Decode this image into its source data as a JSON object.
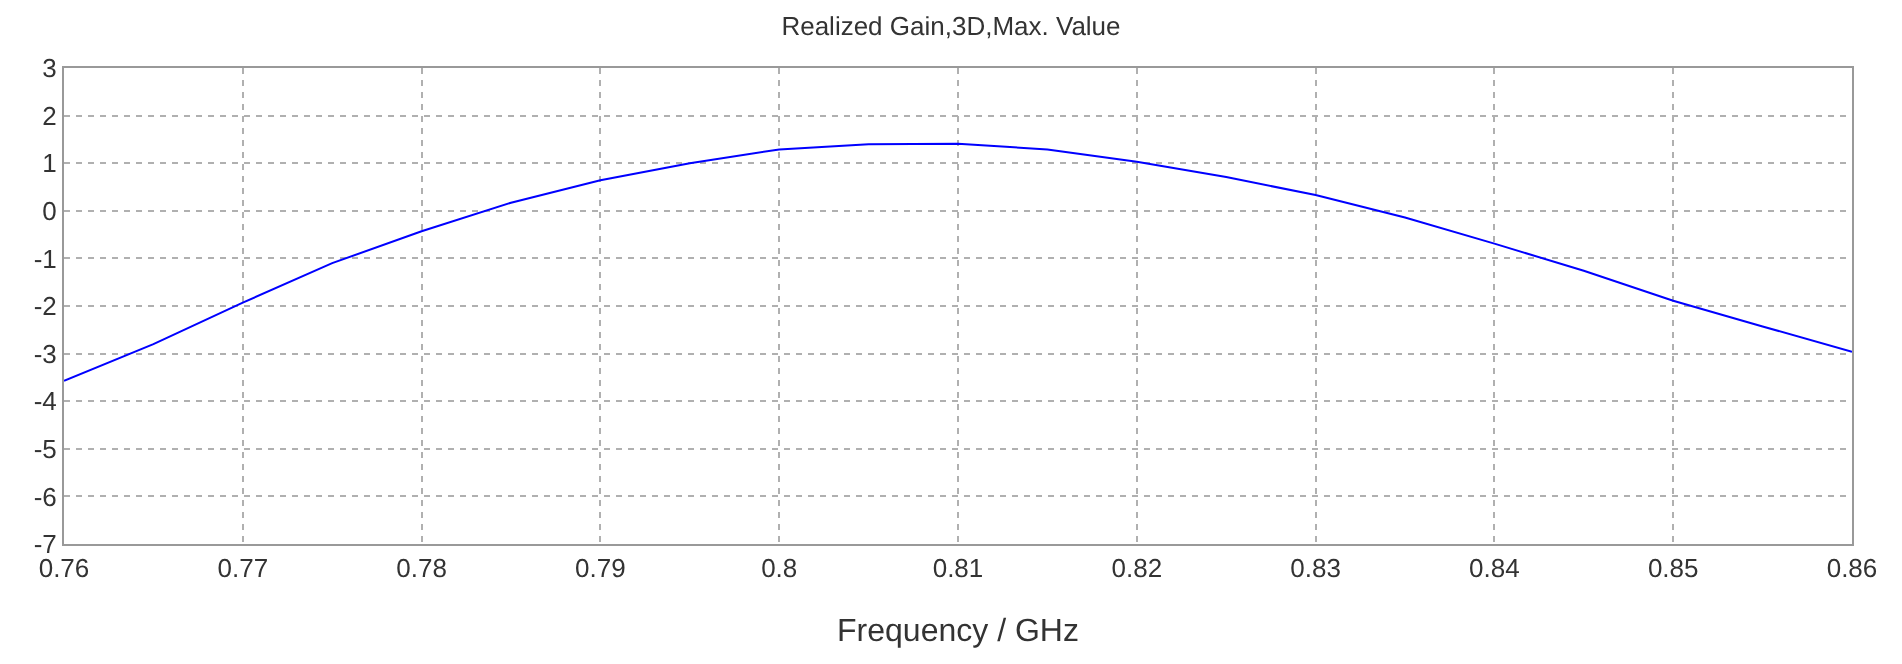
{
  "chart_data": {
    "type": "line",
    "title": "Realized Gain,3D,Max. Value",
    "xlabel": "Frequency / GHz",
    "x": [
      0.76,
      0.765,
      0.77,
      0.775,
      0.78,
      0.785,
      0.79,
      0.795,
      0.8,
      0.805,
      0.81,
      0.815,
      0.82,
      0.825,
      0.83,
      0.835,
      0.84,
      0.845,
      0.85,
      0.855,
      0.86
    ],
    "series": [
      {
        "color": "#0000ff",
        "values": [
          -3.57,
          -2.8,
          -1.93,
          -1.1,
          -0.43,
          0.17,
          0.64,
          1.0,
          1.29,
          1.4,
          1.41,
          1.29,
          1.03,
          0.71,
          0.33,
          -0.14,
          -0.69,
          -1.26,
          -1.89,
          -2.43,
          -2.96
        ]
      }
    ],
    "xlim": [
      0.76,
      0.86
    ],
    "xticks": [
      0.76,
      0.77,
      0.78,
      0.79,
      0.8,
      0.81,
      0.82,
      0.83,
      0.84,
      0.85,
      0.86
    ],
    "ylim": [
      -7,
      3
    ],
    "yticks": [
      -7,
      -6,
      -5,
      -4,
      -3,
      -2,
      -1,
      0,
      1,
      2,
      3
    ],
    "grid": true,
    "legend": false,
    "marker": "none",
    "line_style": "solid"
  }
}
